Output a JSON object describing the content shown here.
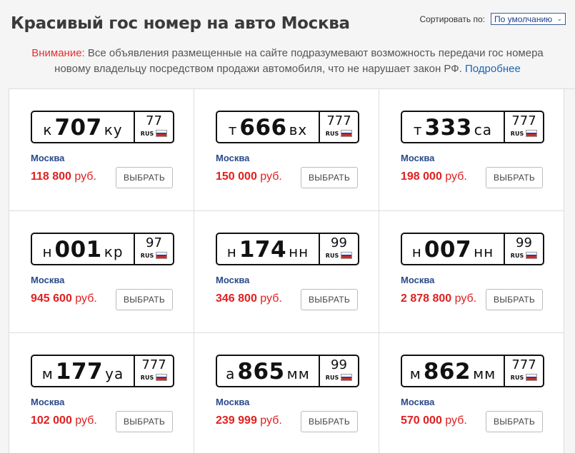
{
  "header": {
    "title": "Красивый гос номер на авто Москва",
    "sort_label": "Сортировать по:",
    "sort_value": "По умолчанию"
  },
  "notice": {
    "warning_label": "Внимание:",
    "line1": " Все объявления размещенные на сайте подразумевают возможность передачи гос номера",
    "line2": "новому владельцу посредством продажи автомобиля, что не нарушает закон РФ.",
    "more_link": "Подробнее"
  },
  "listings": [
    {
      "l1": "к",
      "num": "707",
      "l2": "ку",
      "region": "77",
      "rus": "RUS",
      "city": "Москва",
      "price": "118 800",
      "currency": "руб.",
      "button": "ВЫБРАТЬ"
    },
    {
      "l1": "т",
      "num": "666",
      "l2": "вх",
      "region": "777",
      "rus": "RUS",
      "city": "Москва",
      "price": "150 000",
      "currency": "руб.",
      "button": "ВЫБРАТЬ"
    },
    {
      "l1": "т",
      "num": "333",
      "l2": "са",
      "region": "777",
      "rus": "RUS",
      "city": "Москва",
      "price": "198 000",
      "currency": "руб.",
      "button": "ВЫБРАТЬ"
    },
    {
      "l1": "н",
      "num": "001",
      "l2": "кр",
      "region": "97",
      "rus": "RUS",
      "city": "Москва",
      "price": "945 600",
      "currency": "руб.",
      "button": "ВЫБРАТЬ"
    },
    {
      "l1": "н",
      "num": "174",
      "l2": "нн",
      "region": "99",
      "rus": "RUS",
      "city": "Москва",
      "price": "346 800",
      "currency": "руб.",
      "button": "ВЫБРАТЬ"
    },
    {
      "l1": "н",
      "num": "007",
      "l2": "нн",
      "region": "99",
      "rus": "RUS",
      "city": "Москва",
      "price": "2 878 800",
      "currency": "руб.",
      "button": "ВЫБРАТЬ"
    },
    {
      "l1": "м",
      "num": "177",
      "l2": "уа",
      "region": "777",
      "rus": "RUS",
      "city": "Москва",
      "price": "102 000",
      "currency": "руб.",
      "button": "ВЫБРАТЬ"
    },
    {
      "l1": "а",
      "num": "865",
      "l2": "мм",
      "region": "99",
      "rus": "RUS",
      "city": "Москва",
      "price": "239 999",
      "currency": "руб.",
      "button": "ВЫБРАТЬ"
    },
    {
      "l1": "м",
      "num": "862",
      "l2": "мм",
      "region": "777",
      "rus": "RUS",
      "city": "Москва",
      "price": "570 000",
      "currency": "руб.",
      "button": "ВЫБРАТЬ"
    }
  ]
}
